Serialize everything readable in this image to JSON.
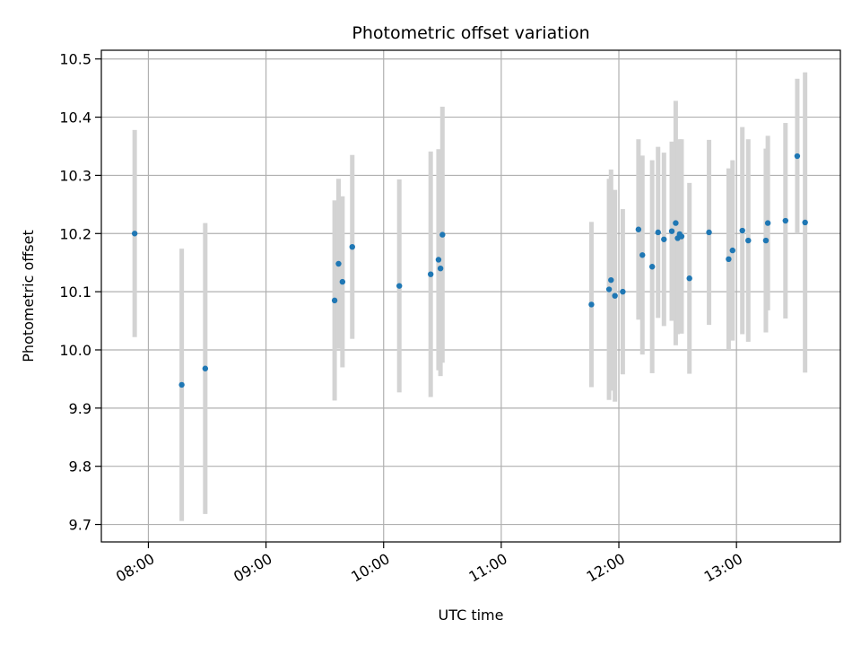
{
  "chart_data": {
    "type": "scatter",
    "title": "Photometric offset variation",
    "xlabel": "UTC time",
    "ylabel": "Photometric offset",
    "x_ticks": [
      "08:00",
      "09:00",
      "10:00",
      "11:00",
      "12:00",
      "13:00"
    ],
    "y_ticks": [
      "9.7",
      "9.8",
      "9.9",
      "10.0",
      "10.1",
      "10.2",
      "10.3",
      "10.4",
      "10.5"
    ],
    "xlim": [
      "07:36",
      "13:53"
    ],
    "ylim": [
      9.67,
      10.515
    ],
    "grid": true,
    "colors": {
      "point": "#1f77b4",
      "errorbar": "#d3d3d3",
      "grid": "#b0b0b0"
    },
    "points": [
      {
        "t": "07:53",
        "y": 10.2,
        "err": 0.178
      },
      {
        "t": "08:17",
        "y": 9.94,
        "err": 0.234
      },
      {
        "t": "08:29",
        "y": 9.968,
        "err": 0.25
      },
      {
        "t": "09:35",
        "y": 10.085,
        "err": 0.172
      },
      {
        "t": "09:37",
        "y": 10.148,
        "err": 0.146
      },
      {
        "t": "09:39",
        "y": 10.117,
        "err": 0.147
      },
      {
        "t": "09:44",
        "y": 10.177,
        "err": 0.158
      },
      {
        "t": "10:08",
        "y": 10.11,
        "err": 0.183
      },
      {
        "t": "10:24",
        "y": 10.13,
        "err": 0.211
      },
      {
        "t": "10:28",
        "y": 10.155,
        "err": 0.19
      },
      {
        "t": "10:29",
        "y": 10.14,
        "err": 0.185
      },
      {
        "t": "10:30",
        "y": 10.198,
        "err": 0.22
      },
      {
        "t": "11:46",
        "y": 10.078,
        "err": 0.142
      },
      {
        "t": "11:55",
        "y": 10.104,
        "err": 0.19
      },
      {
        "t": "11:56",
        "y": 10.12,
        "err": 0.19
      },
      {
        "t": "11:58",
        "y": 10.093,
        "err": 0.182
      },
      {
        "t": "12:02",
        "y": 10.1,
        "err": 0.142
      },
      {
        "t": "12:10",
        "y": 10.207,
        "err": 0.155
      },
      {
        "t": "12:12",
        "y": 10.163,
        "err": 0.171
      },
      {
        "t": "12:17",
        "y": 10.143,
        "err": 0.183
      },
      {
        "t": "12:20",
        "y": 10.202,
        "err": 0.147
      },
      {
        "t": "12:23",
        "y": 10.19,
        "err": 0.149
      },
      {
        "t": "12:27",
        "y": 10.204,
        "err": 0.154
      },
      {
        "t": "12:29",
        "y": 10.218,
        "err": 0.21
      },
      {
        "t": "12:30",
        "y": 10.192,
        "err": 0.165
      },
      {
        "t": "12:31",
        "y": 10.199,
        "err": 0.163
      },
      {
        "t": "12:32",
        "y": 10.195,
        "err": 0.167
      },
      {
        "t": "12:36",
        "y": 10.123,
        "err": 0.164
      },
      {
        "t": "12:46",
        "y": 10.202,
        "err": 0.159
      },
      {
        "t": "12:56",
        "y": 10.156,
        "err": 0.156
      },
      {
        "t": "12:58",
        "y": 10.171,
        "err": 0.155
      },
      {
        "t": "13:03",
        "y": 10.205,
        "err": 0.178
      },
      {
        "t": "13:06",
        "y": 10.188,
        "err": 0.174
      },
      {
        "t": "13:15",
        "y": 10.188,
        "err": 0.158
      },
      {
        "t": "13:16",
        "y": 10.218,
        "err": 0.15
      },
      {
        "t": "13:25",
        "y": 10.222,
        "err": 0.168
      },
      {
        "t": "13:31",
        "y": 10.333,
        "err": 0.133
      },
      {
        "t": "13:35",
        "y": 10.219,
        "err": 0.258
      }
    ]
  }
}
